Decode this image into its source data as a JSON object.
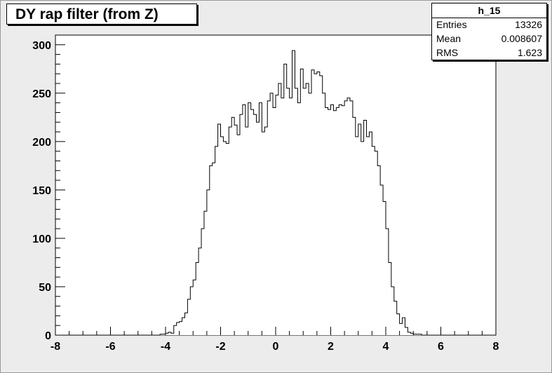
{
  "title": "DY rap filter (from Z)",
  "stats": {
    "name": "h_15",
    "rows": [
      {
        "label": "Entries",
        "value": "13326"
      },
      {
        "label": "Mean",
        "value": "0.008607"
      },
      {
        "label": "RMS",
        "value": "1.623"
      }
    ]
  },
  "chart_data": {
    "type": "bar",
    "title": "DY rap filter (from Z)",
    "xlim": [
      -8,
      8
    ],
    "ylim": [
      0,
      310
    ],
    "grid": false,
    "xticks": [
      -8,
      -6,
      -4,
      -2,
      0,
      2,
      4,
      6,
      8
    ],
    "yticks": [
      0,
      50,
      100,
      150,
      200,
      250,
      300
    ],
    "bin_width": 0.1,
    "x_start": -4.2,
    "values": [
      1,
      1,
      2,
      3,
      2,
      10,
      13,
      14,
      18,
      23,
      37,
      50,
      57,
      75,
      90,
      110,
      128,
      150,
      175,
      178,
      195,
      218,
      205,
      200,
      198,
      215,
      225,
      217,
      207,
      228,
      238,
      215,
      240,
      233,
      228,
      220,
      240,
      210,
      215,
      242,
      250,
      235,
      248,
      260,
      245,
      280,
      255,
      245,
      294,
      255,
      240,
      275,
      255,
      260,
      250,
      274,
      270,
      272,
      268,
      250,
      235,
      233,
      238,
      232,
      235,
      238,
      237,
      242,
      245,
      242,
      225,
      205,
      218,
      200,
      222,
      205,
      210,
      195,
      190,
      175,
      155,
      138,
      110,
      75,
      50,
      35,
      22,
      12,
      18,
      8,
      3,
      2,
      1,
      1,
      1
    ]
  }
}
